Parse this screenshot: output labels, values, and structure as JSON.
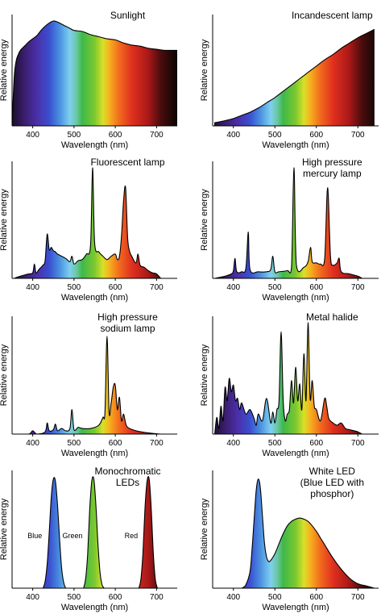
{
  "chart_data": [
    {
      "type": "area",
      "title": [
        "Sunlight"
      ],
      "xlabel": "Wavelength (nm)",
      "ylabel": "Relative energy",
      "xlim": [
        350,
        750
      ],
      "ylim": [
        0,
        1
      ],
      "x_ticks": [
        "400",
        "500",
        "600",
        "700"
      ],
      "series": [
        {
          "x": [
            350,
            355,
            360,
            365,
            370,
            380,
            390,
            400,
            410,
            420,
            430,
            440,
            450,
            460,
            470,
            480,
            490,
            500,
            520,
            540,
            560,
            580,
            600,
            620,
            640,
            660,
            680,
            700,
            720,
            740,
            750
          ],
          "y": [
            0.0,
            0.46,
            0.62,
            0.68,
            0.72,
            0.76,
            0.8,
            0.83,
            0.86,
            0.91,
            0.95,
            0.98,
            1.0,
            0.99,
            0.97,
            0.95,
            0.93,
            0.91,
            0.9,
            0.87,
            0.85,
            0.83,
            0.82,
            0.79,
            0.77,
            0.76,
            0.74,
            0.73,
            0.72,
            0.72,
            0.72
          ]
        }
      ]
    },
    {
      "type": "area",
      "title": [
        "Incandescent lamp"
      ],
      "xlabel": "Wavelength (nm)",
      "ylabel": "Relative energy",
      "xlim": [
        350,
        750
      ],
      "ylim": [
        0,
        1
      ],
      "x_ticks": [
        "400",
        "500",
        "600",
        "700"
      ],
      "series": [
        {
          "x": [
            355,
            380,
            400,
            420,
            440,
            460,
            480,
            500,
            520,
            540,
            560,
            580,
            600,
            620,
            640,
            660,
            680,
            700,
            720,
            740
          ],
          "y": [
            0.03,
            0.05,
            0.07,
            0.1,
            0.13,
            0.17,
            0.22,
            0.27,
            0.33,
            0.39,
            0.45,
            0.51,
            0.57,
            0.63,
            0.68,
            0.74,
            0.79,
            0.84,
            0.88,
            0.92
          ]
        }
      ]
    },
    {
      "type": "area",
      "title": [
        "Fluorescent lamp"
      ],
      "xlabel": "Wavelength (nm)",
      "ylabel": "Relative energy",
      "xlim": [
        350,
        750
      ],
      "ylim": [
        0,
        1
      ],
      "x_ticks": [
        "400",
        "500",
        "600",
        "700"
      ],
      "series": [
        {
          "x": [
            355,
            370,
            380,
            390,
            400,
            404,
            408,
            415,
            425,
            430,
            435,
            440,
            445,
            450,
            455,
            460,
            480,
            490,
            495,
            500,
            510,
            520,
            530,
            540,
            545,
            550,
            560,
            570,
            580,
            590,
            600,
            605,
            610,
            615,
            620,
            625,
            630,
            635,
            640,
            650,
            655,
            660,
            670,
            680,
            690,
            700,
            710
          ],
          "y": [
            0.0,
            0.02,
            0.03,
            0.04,
            0.05,
            0.13,
            0.05,
            0.08,
            0.12,
            0.16,
            0.4,
            0.26,
            0.28,
            0.25,
            0.24,
            0.22,
            0.18,
            0.15,
            0.2,
            0.13,
            0.16,
            0.17,
            0.22,
            0.3,
            1.0,
            0.32,
            0.24,
            0.2,
            0.17,
            0.2,
            0.22,
            0.17,
            0.2,
            0.38,
            0.7,
            0.82,
            0.36,
            0.24,
            0.2,
            0.14,
            0.22,
            0.12,
            0.1,
            0.07,
            0.05,
            0.04,
            0.0
          ]
        }
      ]
    },
    {
      "type": "area",
      "title": [
        "High pressure",
        "mercury lamp"
      ],
      "xlabel": "Wavelength (nm)",
      "ylabel": "Relative energy",
      "xlim": [
        350,
        750
      ],
      "ylim": [
        0,
        1
      ],
      "x_ticks": [
        "400",
        "500",
        "600",
        "700"
      ],
      "series": [
        {
          "x": [
            355,
            380,
            395,
            400,
            404,
            408,
            420,
            430,
            436,
            440,
            460,
            480,
            490,
            495,
            500,
            510,
            530,
            540,
            546,
            552,
            570,
            580,
            586,
            590,
            600,
            610,
            620,
            627,
            634,
            640,
            650,
            655,
            660,
            680,
            700,
            710
          ],
          "y": [
            0.0,
            0.02,
            0.04,
            0.07,
            0.18,
            0.06,
            0.06,
            0.09,
            0.42,
            0.08,
            0.06,
            0.06,
            0.08,
            0.2,
            0.06,
            0.06,
            0.07,
            0.1,
            1.0,
            0.12,
            0.1,
            0.15,
            0.28,
            0.15,
            0.14,
            0.13,
            0.18,
            0.82,
            0.2,
            0.12,
            0.14,
            0.18,
            0.06,
            0.04,
            0.02,
            0.0
          ]
        }
      ]
    },
    {
      "type": "area",
      "title": [
        "High pressure",
        "sodium lamp"
      ],
      "xlabel": "Wavelength (nm)",
      "ylabel": "Relative energy",
      "xlim": [
        350,
        750
      ],
      "ylim": [
        0,
        1
      ],
      "x_ticks": [
        "400",
        "500",
        "600",
        "700"
      ],
      "series": [
        {
          "x": [
            355,
            390,
            400,
            410,
            430,
            435,
            440,
            450,
            455,
            460,
            470,
            480,
            490,
            495,
            500,
            510,
            520,
            540,
            560,
            570,
            575,
            580,
            585,
            590,
            595,
            600,
            605,
            610,
            615,
            620,
            625,
            630,
            650,
            680,
            710
          ],
          "y": [
            0.0,
            0.0,
            0.03,
            0.0,
            0.02,
            0.1,
            0.03,
            0.04,
            0.09,
            0.03,
            0.05,
            0.03,
            0.05,
            0.22,
            0.04,
            0.06,
            0.05,
            0.05,
            0.08,
            0.15,
            0.2,
            0.88,
            0.2,
            0.28,
            0.42,
            0.44,
            0.22,
            0.33,
            0.12,
            0.18,
            0.1,
            0.06,
            0.03,
            0.01,
            0.0
          ]
        }
      ]
    },
    {
      "type": "area",
      "title": [
        "Metal halide"
      ],
      "xlabel": "Wavelength (nm)",
      "ylabel": "Relative energy",
      "xlim": [
        350,
        750
      ],
      "ylim": [
        0,
        1
      ],
      "x_ticks": [
        "400",
        "500",
        "600",
        "700"
      ],
      "series": [
        {
          "x": [
            355,
            360,
            365,
            370,
            375,
            380,
            385,
            390,
            395,
            400,
            405,
            410,
            415,
            420,
            430,
            440,
            450,
            455,
            460,
            470,
            480,
            490,
            495,
            500,
            505,
            510,
            515,
            520,
            525,
            530,
            535,
            540,
            545,
            550,
            555,
            560,
            565,
            570,
            575,
            580,
            585,
            590,
            595,
            600,
            610,
            620,
            625,
            630,
            640,
            650,
            660,
            670,
            680,
            700,
            710
          ],
          "y": [
            0.0,
            0.15,
            0.05,
            0.25,
            0.12,
            0.42,
            0.3,
            0.5,
            0.38,
            0.44,
            0.3,
            0.32,
            0.22,
            0.28,
            0.18,
            0.22,
            0.14,
            0.08,
            0.18,
            0.12,
            0.32,
            0.1,
            0.2,
            0.1,
            0.22,
            0.3,
            0.92,
            0.3,
            0.12,
            0.18,
            0.22,
            0.48,
            0.28,
            0.6,
            0.3,
            0.45,
            0.22,
            0.72,
            0.3,
            1.0,
            0.32,
            0.48,
            0.25,
            0.22,
            0.12,
            0.32,
            0.25,
            0.14,
            0.1,
            0.08,
            0.1,
            0.05,
            0.04,
            0.02,
            0.0
          ]
        }
      ]
    },
    {
      "type": "area",
      "title": [
        "Monochromatic",
        "LEDs"
      ],
      "xlabel": "Wavelength (nm)",
      "ylabel": "Relative energy",
      "xlim": [
        350,
        750
      ],
      "ylim": [
        0,
        1
      ],
      "x_ticks": [
        "400",
        "500",
        "600",
        "700"
      ],
      "series": [
        {
          "name": "Blue",
          "x": [
            425,
            430,
            435,
            440,
            445,
            450,
            455,
            460,
            465,
            470,
            475,
            480
          ],
          "y": [
            0.0,
            0.06,
            0.22,
            0.5,
            0.82,
            0.98,
            0.96,
            0.75,
            0.45,
            0.18,
            0.05,
            0.0
          ]
        },
        {
          "name": "Green",
          "x": [
            523,
            528,
            533,
            538,
            543,
            548,
            553,
            558,
            563,
            568,
            573
          ],
          "y": [
            0.0,
            0.08,
            0.3,
            0.7,
            0.96,
            0.98,
            0.75,
            0.4,
            0.14,
            0.03,
            0.0
          ]
        },
        {
          "name": "Red",
          "x": [
            657,
            662,
            667,
            672,
            677,
            682,
            687,
            692,
            697,
            702
          ],
          "y": [
            0.0,
            0.08,
            0.32,
            0.72,
            0.96,
            0.98,
            0.72,
            0.32,
            0.08,
            0.0
          ]
        }
      ]
    },
    {
      "type": "area",
      "title": [
        "White LED",
        "(Blue LED with",
        "phosphor)"
      ],
      "xlabel": "Wavelength (nm)",
      "ylabel": "Relative energy",
      "xlim": [
        350,
        750
      ],
      "ylim": [
        0,
        1
      ],
      "x_ticks": [
        "400",
        "500",
        "600",
        "700"
      ],
      "series": [
        {
          "x": [
            420,
            430,
            440,
            445,
            450,
            455,
            460,
            465,
            470,
            475,
            480,
            485,
            490,
            500,
            510,
            520,
            530,
            540,
            550,
            560,
            570,
            580,
            590,
            600,
            610,
            620,
            640,
            660,
            680,
            700,
            720,
            740
          ],
          "y": [
            0.0,
            0.03,
            0.15,
            0.35,
            0.62,
            0.88,
            0.98,
            0.9,
            0.65,
            0.4,
            0.28,
            0.24,
            0.25,
            0.31,
            0.4,
            0.49,
            0.56,
            0.6,
            0.62,
            0.63,
            0.62,
            0.6,
            0.56,
            0.51,
            0.45,
            0.39,
            0.27,
            0.17,
            0.09,
            0.04,
            0.02,
            0.0
          ]
        }
      ]
    }
  ]
}
